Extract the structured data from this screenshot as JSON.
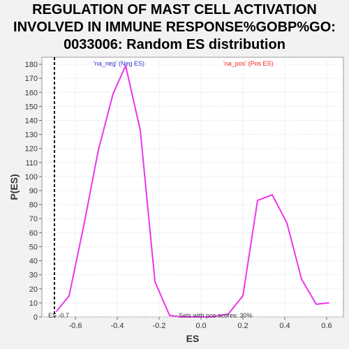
{
  "chart_data": {
    "type": "line",
    "title_lines": [
      "REGULATION OF MAST CELL ACTIVATION",
      "INVOLVED IN IMMUNE RESPONSE%GOBP%GO:",
      "0033006: Random ES distribution"
    ],
    "xlabel": "ES",
    "ylabel": "P(ES)",
    "xlim": [
      -0.76,
      0.68
    ],
    "ylim": [
      0,
      185
    ],
    "x_ticks": [
      -0.6,
      -0.4,
      -0.2,
      0.0,
      0.2,
      0.4,
      0.6
    ],
    "x_tick_labels": [
      "-0.6",
      "-0.4",
      "-0.2",
      "0.0",
      "0.2",
      "0.4",
      "0.6"
    ],
    "y_ticks": [
      0,
      10,
      20,
      30,
      40,
      50,
      60,
      70,
      80,
      90,
      100,
      110,
      120,
      130,
      140,
      150,
      160,
      170,
      180
    ],
    "grid": true,
    "legend": [
      {
        "label": "'na_neg' (Neg ES)",
        "color": "#3333cc",
        "position": "top-left"
      },
      {
        "label": "'na_pos' (Pos ES)",
        "color": "#ff2222",
        "position": "top-right"
      }
    ],
    "series": [
      {
        "color": "#ee33ee",
        "x": [
          -0.69,
          -0.63,
          -0.56,
          -0.49,
          -0.42,
          -0.36,
          -0.29,
          -0.22,
          -0.15,
          -0.09,
          -0.02,
          0.05,
          0.13,
          0.2,
          0.27,
          0.34,
          0.41,
          0.48,
          0.55,
          0.61
        ],
        "y": [
          4,
          15,
          65,
          119,
          159,
          179,
          133,
          25,
          1,
          0,
          0,
          0,
          2,
          15,
          83,
          87,
          67,
          27,
          9,
          10
        ]
      }
    ],
    "vline": {
      "x": -0.7,
      "label": "ES -0.7",
      "style": "dashed",
      "color": "#000000"
    },
    "annotation": "Sets with pos scores: 30%"
  }
}
